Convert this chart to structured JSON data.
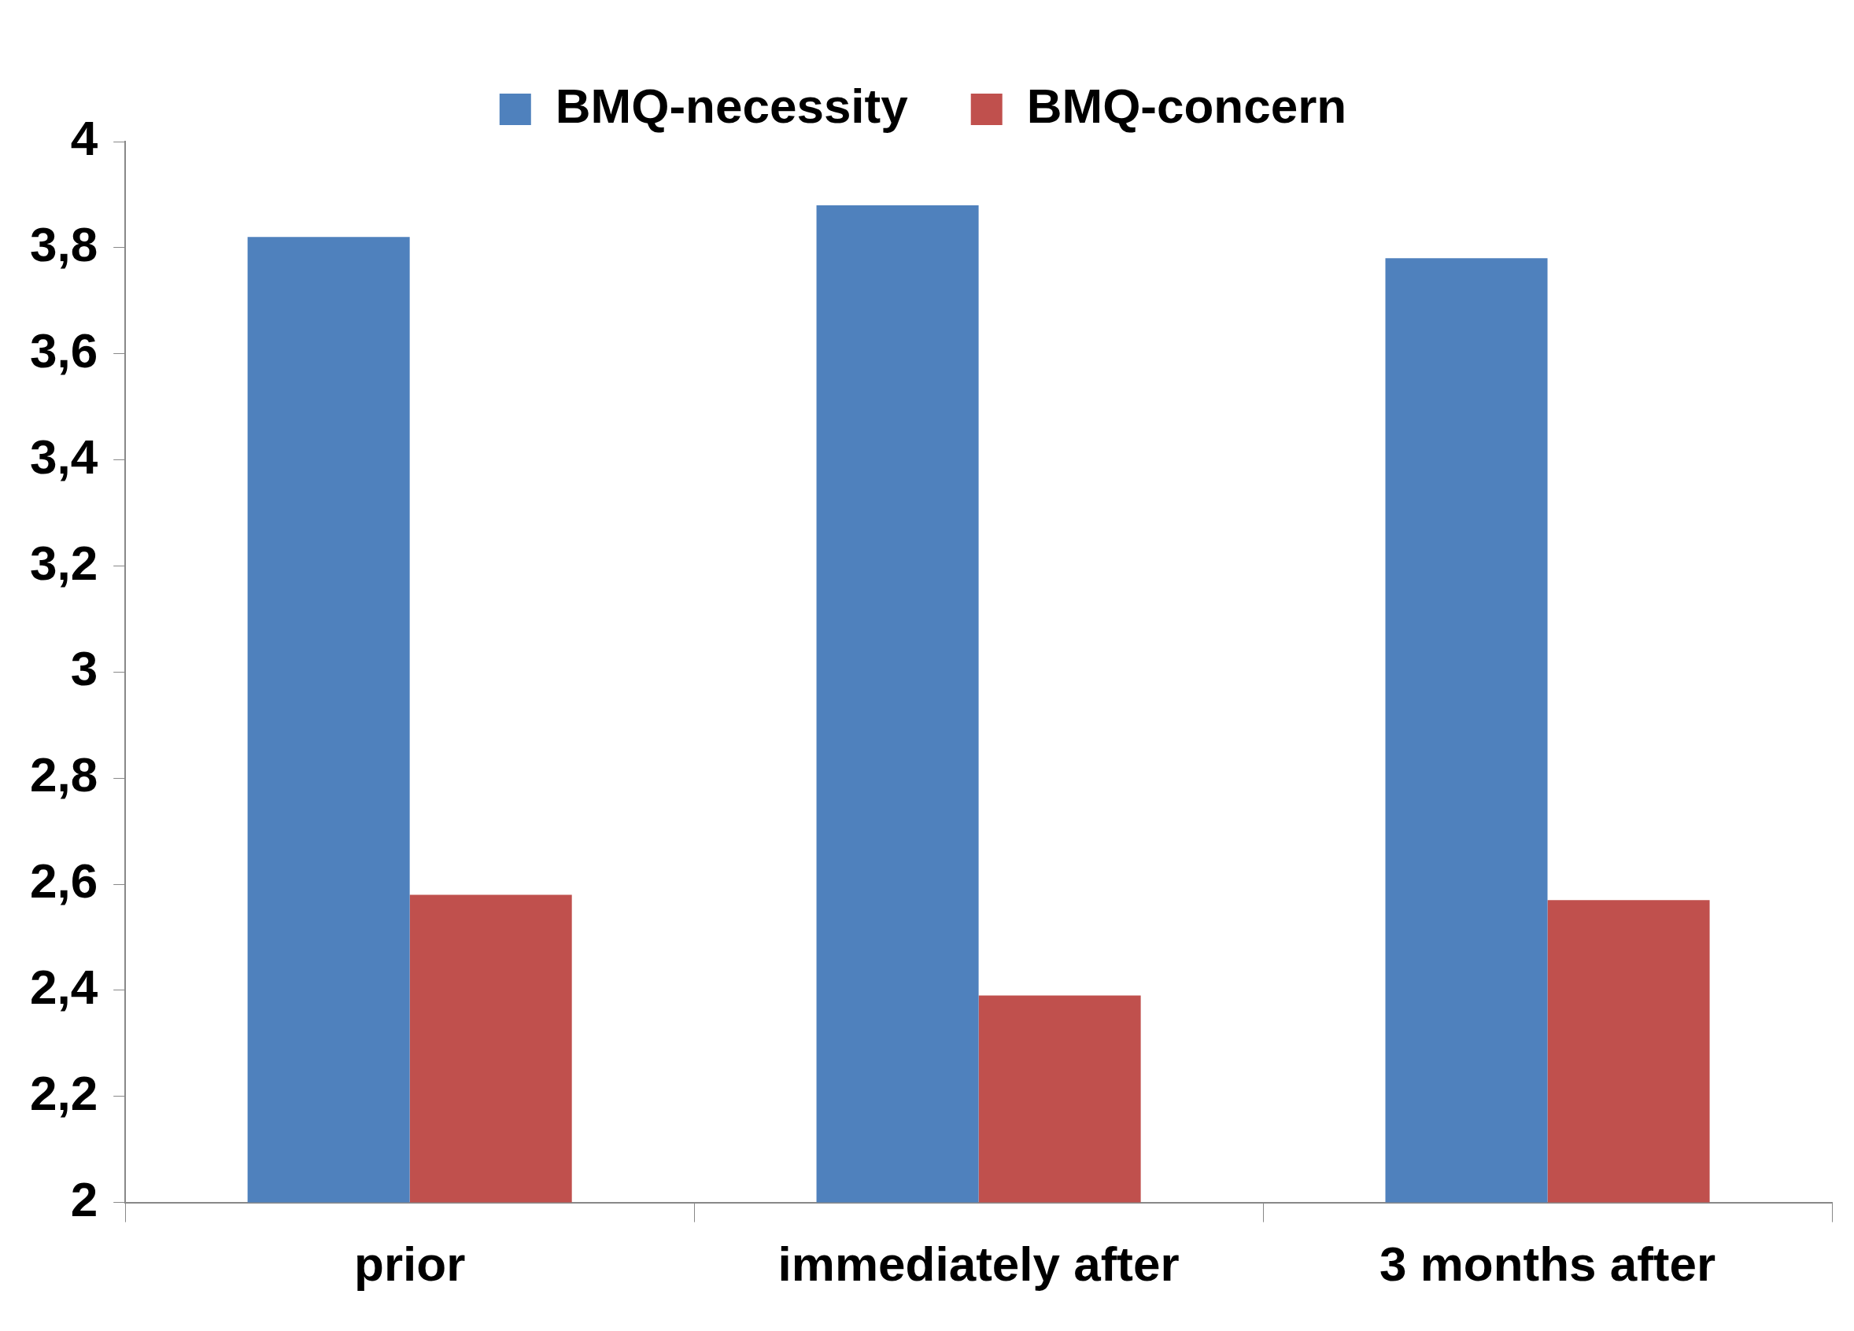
{
  "chart_data": {
    "type": "bar",
    "categories": [
      "prior",
      "immediately after",
      "3 months after"
    ],
    "series": [
      {
        "name": "BMQ-necessity",
        "color": "#4f81bd",
        "values": [
          3.82,
          3.88,
          3.78
        ]
      },
      {
        "name": "BMQ-concern",
        "color": "#c0504d",
        "values": [
          2.58,
          2.39,
          2.57
        ]
      }
    ],
    "ylim": [
      2,
      4
    ],
    "yticks": [
      2,
      {
        "value": 2.2,
        "label": "2,2"
      },
      {
        "value": 2.4,
        "label": "2,4"
      },
      {
        "value": 2.6,
        "label": "2,6"
      },
      {
        "value": 2.8,
        "label": "2,8"
      },
      3,
      {
        "value": 3.2,
        "label": "3,2"
      },
      {
        "value": 3.4,
        "label": "3,4"
      },
      {
        "value": 3.6,
        "label": "3,6"
      },
      {
        "value": 3.8,
        "label": "3,8"
      },
      4
    ],
    "grid": false,
    "legend": "top"
  }
}
